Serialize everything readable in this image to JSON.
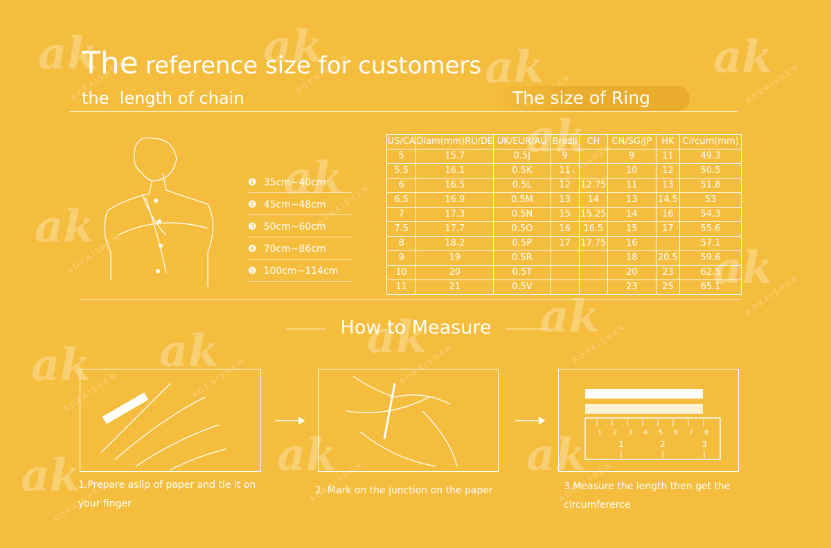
{
  "watermark": {
    "logo": "ak",
    "brand": "AOKAISHEN"
  },
  "title": {
    "lead": "The",
    "rest": "reference size for customers"
  },
  "chain": {
    "heading": "the  length of chain",
    "items": [
      {
        "marker": "❶",
        "text": "35cm~40cm"
      },
      {
        "marker": "❷",
        "text": "45cm~48cm"
      },
      {
        "marker": "❸",
        "text": "50cm~60cm"
      },
      {
        "marker": "❹",
        "text": "70cm~86cm"
      },
      {
        "marker": "❺",
        "text": "100cm~114cm"
      }
    ]
  },
  "ring": {
    "heading": "The size of Ring",
    "table": {
      "header": [
        "US/CA",
        "Diam(mm)RU/DE",
        "UK/EUR/AU",
        "Brazil",
        "CH",
        "CN/SG/JP",
        "HK",
        "Circum(mm)"
      ],
      "rows": [
        [
          "5",
          "15.7",
          "0.5J",
          "9",
          null,
          "9",
          "11",
          "49.3"
        ],
        [
          "5.5",
          "16.1",
          "0.5K",
          "11",
          null,
          "10",
          "12",
          "50.5"
        ],
        [
          "6",
          "16.5",
          "0.5L",
          "12",
          "12.75",
          "11",
          "13",
          "51.8"
        ],
        [
          "6.5",
          "16.9",
          "0.5M",
          "13",
          "14",
          "13",
          "14.5",
          "53"
        ],
        [
          "7",
          "17.3",
          "0.5N",
          "15",
          "15.25",
          "14",
          "16",
          "54.3"
        ],
        [
          "7.5",
          "17.7",
          "0.5O",
          "16",
          "16.5",
          "15",
          "17",
          "55.6"
        ],
        [
          "8",
          "18.2",
          "0.5P",
          "17",
          "17.75",
          "16",
          null,
          "57.1"
        ],
        [
          "9",
          "19",
          "0.5R",
          null,
          null,
          "18",
          "20.5",
          "59.6"
        ],
        [
          "10",
          "20",
          "0.5T",
          null,
          null,
          "20",
          "23",
          "62.5"
        ],
        [
          "11",
          "21",
          "0.5V",
          null,
          null,
          "23",
          "25",
          "65.1"
        ]
      ]
    }
  },
  "measure": {
    "heading": "How to Measure",
    "steps": [
      "1.Prepare aslip of paper and tie it on your finger",
      "2. Mark on the junction on the paper",
      "3.Measure the length then get the circumfererce"
    ],
    "ruler": {
      "cm": [
        "1",
        "2",
        "3",
        "4",
        "5",
        "6",
        "7",
        "8"
      ],
      "inch": [
        "1",
        "2",
        "3"
      ]
    }
  }
}
